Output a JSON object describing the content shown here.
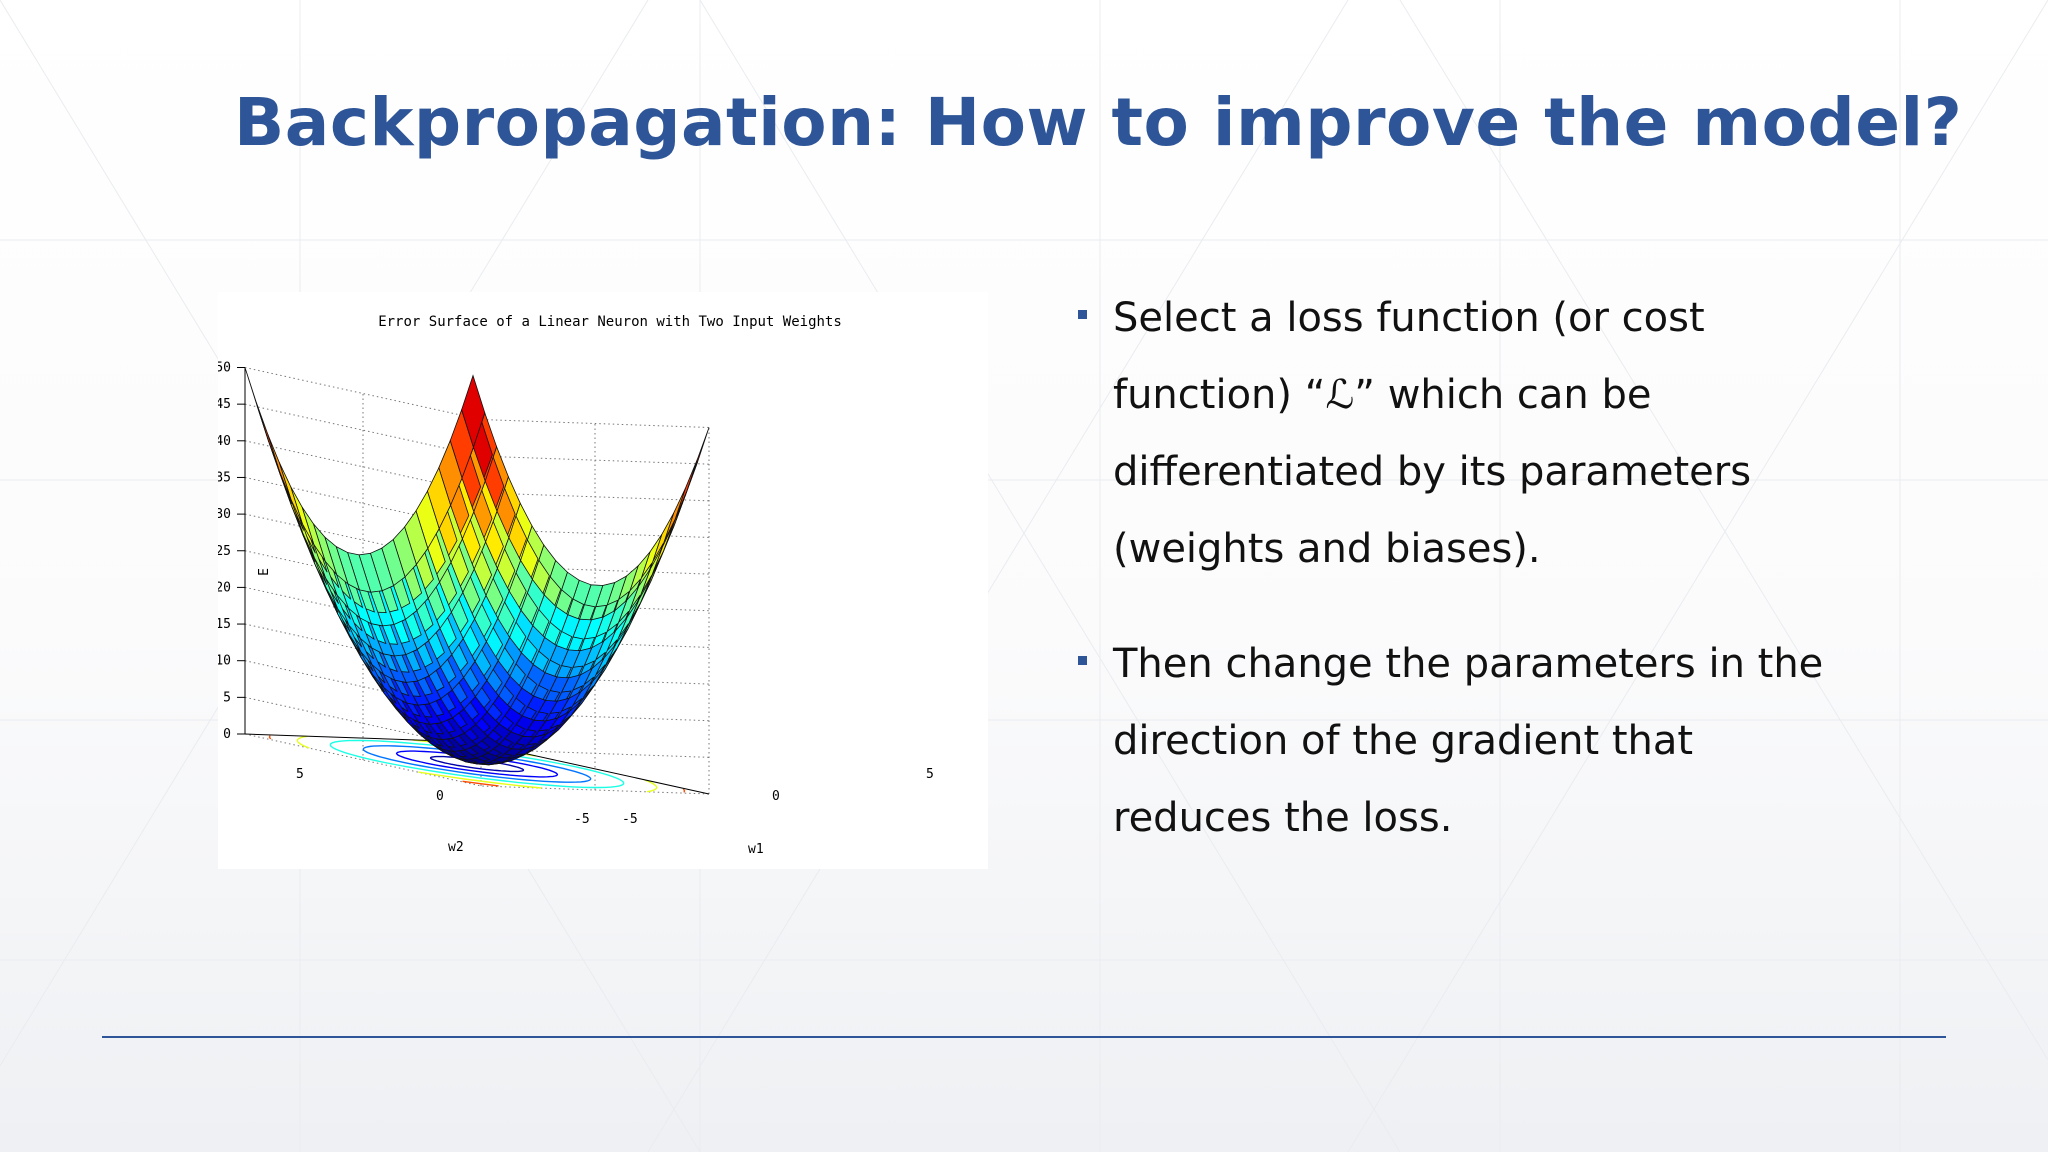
{
  "slide": {
    "title": "Backpropagation: How to improve the model?",
    "bullets": [
      {
        "text": "Select a loss function (or cost function) “ℒ” which can be differentiated by its parameters (weights and biases)."
      },
      {
        "text": "Then change the parameters in the direction of the gradient that reduces the loss."
      }
    ],
    "colors": {
      "title": "#2e5597",
      "bullet": "#2e5597",
      "rule": "#2e5597",
      "text": "#111111"
    }
  },
  "figure": {
    "title": "Error Surface of a Linear Neuron with Two Input Weights",
    "zlabel": "E",
    "xlabel": "w1",
    "ylabel": "w2",
    "z_ticks": [
      "0",
      "5",
      "10",
      "15",
      "20",
      "25",
      "30",
      "35",
      "40",
      "45",
      "50"
    ],
    "w2_ticks": [
      "5",
      "0",
      "-5"
    ],
    "w1_ticks": [
      "-5",
      "0",
      "5"
    ],
    "colormap": "jet",
    "surface": "paraboloid E = w1^2 + w2^2",
    "grid": true
  },
  "chart_data": {
    "type": "surface",
    "title": "Error Surface of a Linear Neuron with Two Input Weights",
    "xlabel": "w1",
    "ylabel": "w2",
    "zlabel": "E",
    "xlim": [
      -5,
      5
    ],
    "ylim": [
      -5,
      5
    ],
    "zlim": [
      0,
      50
    ],
    "function": "E = w1^2 + w2^2",
    "contours_at_base": true
  }
}
